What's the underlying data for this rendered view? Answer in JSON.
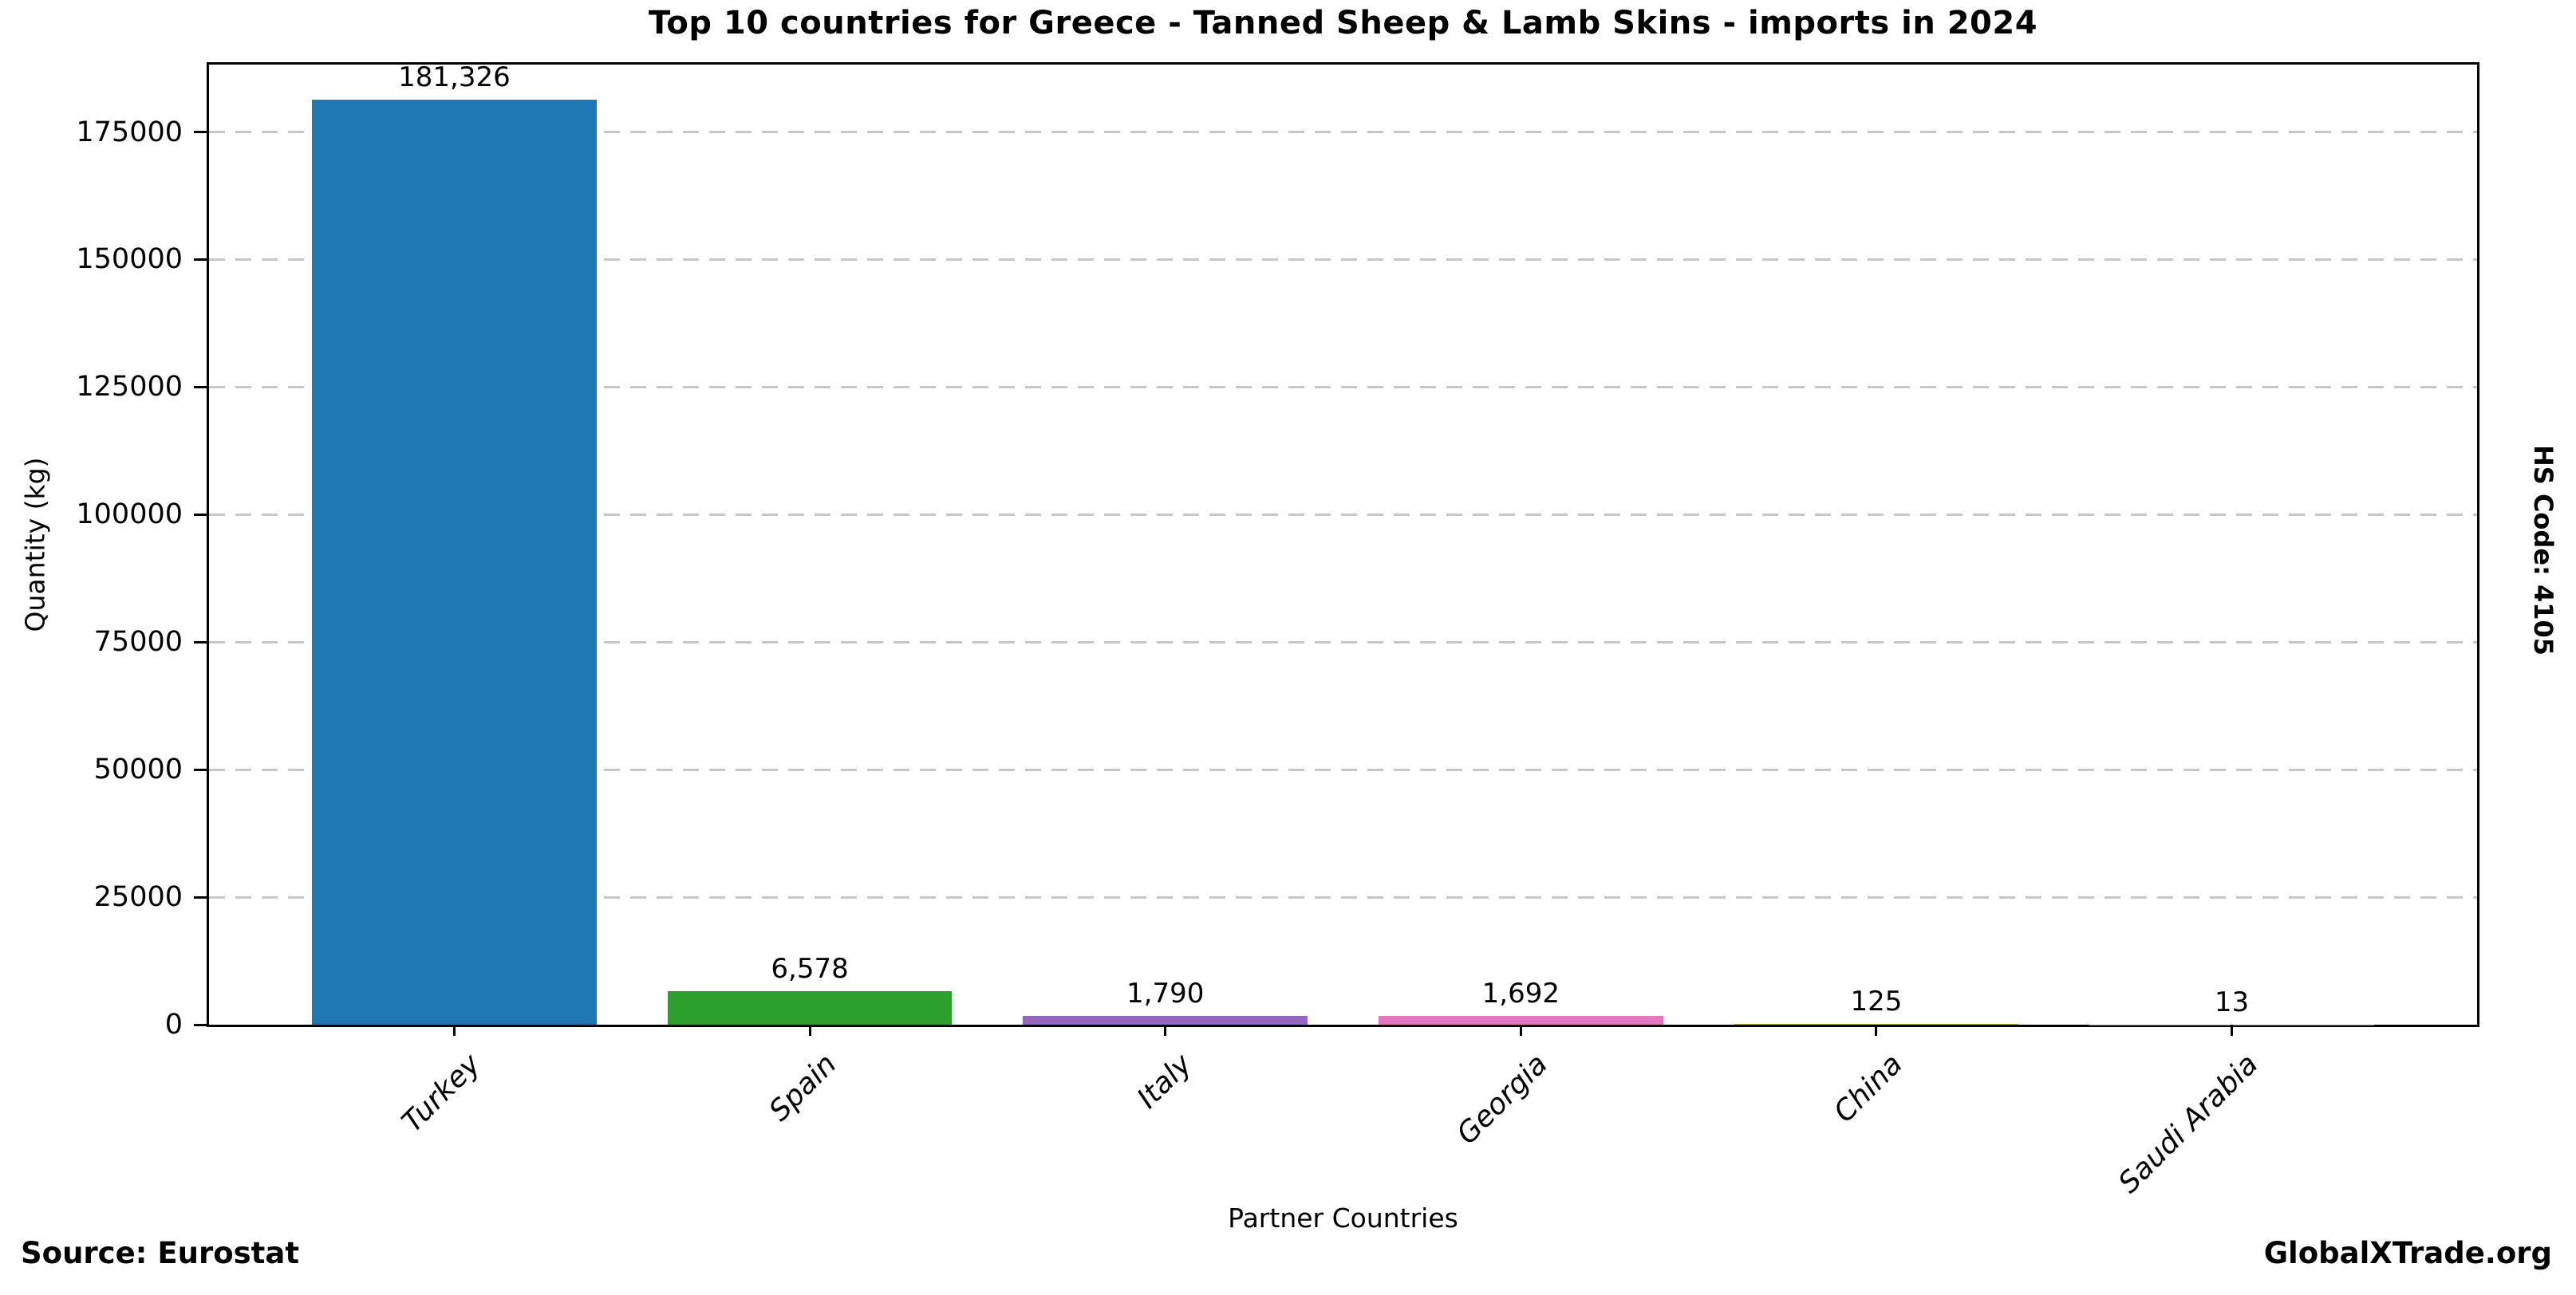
{
  "title": "Top 10 countries for Greece - Tanned Sheep & Lamb Skins - imports in 2024",
  "side_label": "HS Code: 4105",
  "footer": {
    "source": "Source: Eurostat",
    "branding": "GlobalXTrade.org"
  },
  "colors": {
    "background": "#ffffff",
    "axis": "#000000",
    "grid": "#c7c7c7",
    "text": "#000000"
  },
  "chart_data": {
    "type": "bar",
    "title": "Top 10 countries for Greece - Tanned Sheep & Lamb Skins - imports in 2024",
    "xlabel": "Partner Countries",
    "ylabel": "Quantity (kg)",
    "categories": [
      "Turkey",
      "Spain",
      "Italy",
      "Georgia",
      "China",
      "Saudi Arabia"
    ],
    "values": [
      181326,
      6578,
      1790,
      1692,
      125,
      13
    ],
    "value_labels": [
      "181,326",
      "6,578",
      "1,790",
      "1,692",
      "125",
      "13"
    ],
    "bar_colors": [
      "#1f77b4",
      "#2ca02c",
      "#9467bd",
      "#e377c2",
      "#bcbd22",
      "#17becf"
    ],
    "yticks": [
      0,
      25000,
      50000,
      75000,
      100000,
      125000,
      150000,
      175000
    ],
    "ylim": [
      0,
      188222
    ],
    "grid": "horizontal-dashed",
    "legend": "none",
    "bar_width_fraction": 0.8,
    "x_tick_rotation": 45
  }
}
